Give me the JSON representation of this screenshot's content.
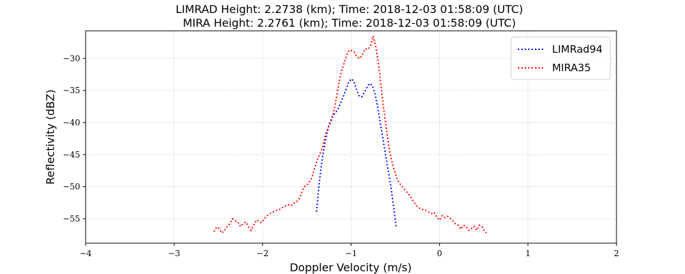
{
  "chart_data": {
    "type": "line",
    "title_lines": [
      "LIMRAD Height: 2.2738 (km); Time: 2018-12-03 01:58:09 (UTC)",
      "MIRA Height: 2.2761 (km); Time: 2018-12-03 01:58:09 (UTC)"
    ],
    "xlabel": "Doppler Velocity (m/s)",
    "ylabel": "Reflectivity (dBZ)",
    "xlim": [
      -4,
      2
    ],
    "ylim": [
      -58.8,
      -25.7
    ],
    "x_ticks": [
      -4,
      -3,
      -2,
      -1,
      0,
      1,
      2
    ],
    "x_tick_labels": [
      "−4",
      "−3",
      "−2",
      "−1",
      "0",
      "1",
      "2"
    ],
    "y_ticks": [
      -55,
      -50,
      -45,
      -40,
      -35,
      -30
    ],
    "y_tick_labels": [
      "−55",
      "−50",
      "−45",
      "−40",
      "−35",
      "−30"
    ],
    "grid": true,
    "legend_position": "top-right",
    "series": [
      {
        "name": "LIMRad94",
        "color": "#0000ff",
        "style": "dotted",
        "points": [
          [
            -1.39,
            -53.9
          ],
          [
            -1.36,
            -49.5
          ],
          [
            -1.33,
            -46.0
          ],
          [
            -1.3,
            -43.5
          ],
          [
            -1.27,
            -41.5
          ],
          [
            -1.24,
            -40.0
          ],
          [
            -1.21,
            -39.0
          ],
          [
            -1.18,
            -38.5
          ],
          [
            -1.15,
            -38.0
          ],
          [
            -1.12,
            -37.0
          ],
          [
            -1.09,
            -36.0
          ],
          [
            -1.06,
            -35.0
          ],
          [
            -1.03,
            -33.8
          ],
          [
            -1.0,
            -33.2
          ],
          [
            -0.97,
            -33.5
          ],
          [
            -0.94,
            -34.8
          ],
          [
            -0.91,
            -35.8
          ],
          [
            -0.88,
            -36.0
          ],
          [
            -0.85,
            -35.3
          ],
          [
            -0.82,
            -34.5
          ],
          [
            -0.79,
            -33.9
          ],
          [
            -0.76,
            -34.2
          ],
          [
            -0.73,
            -35.5
          ],
          [
            -0.7,
            -37.5
          ],
          [
            -0.67,
            -40.0
          ],
          [
            -0.64,
            -42.5
          ],
          [
            -0.61,
            -45.0
          ],
          [
            -0.58,
            -47.5
          ],
          [
            -0.55,
            -50.0
          ],
          [
            -0.52,
            -53.0
          ],
          [
            -0.49,
            -56.2
          ]
        ]
      },
      {
        "name": "MIRA35",
        "color": "#ff0000",
        "style": "dotted",
        "points": [
          [
            -2.55,
            -57.0
          ],
          [
            -2.52,
            -56.3
          ],
          [
            -2.49,
            -56.5
          ],
          [
            -2.46,
            -57.2
          ],
          [
            -2.43,
            -56.8
          ],
          [
            -2.4,
            -56.2
          ],
          [
            -2.37,
            -55.8
          ],
          [
            -2.34,
            -55.0
          ],
          [
            -2.31,
            -55.3
          ],
          [
            -2.28,
            -55.5
          ],
          [
            -2.25,
            -56.2
          ],
          [
            -2.22,
            -55.8
          ],
          [
            -2.19,
            -55.5
          ],
          [
            -2.16,
            -56.2
          ],
          [
            -2.13,
            -56.8
          ],
          [
            -2.1,
            -56.0
          ],
          [
            -2.07,
            -55.2
          ],
          [
            -2.04,
            -55.4
          ],
          [
            -2.01,
            -55.6
          ],
          [
            -1.98,
            -55.0
          ],
          [
            -1.95,
            -54.5
          ],
          [
            -1.92,
            -54.2
          ],
          [
            -1.89,
            -54.0
          ],
          [
            -1.86,
            -53.8
          ],
          [
            -1.83,
            -53.6
          ],
          [
            -1.8,
            -53.5
          ],
          [
            -1.77,
            -53.2
          ],
          [
            -1.74,
            -53.0
          ],
          [
            -1.71,
            -52.8
          ],
          [
            -1.68,
            -53.0
          ],
          [
            -1.65,
            -52.6
          ],
          [
            -1.62,
            -52.4
          ],
          [
            -1.59,
            -52.0
          ],
          [
            -1.56,
            -51.0
          ],
          [
            -1.53,
            -50.0
          ],
          [
            -1.5,
            -49.8
          ],
          [
            -1.47,
            -49.2
          ],
          [
            -1.44,
            -48.5
          ],
          [
            -1.41,
            -47.0
          ],
          [
            -1.38,
            -45.8
          ],
          [
            -1.35,
            -44.8
          ],
          [
            -1.32,
            -43.8
          ],
          [
            -1.29,
            -42.0
          ],
          [
            -1.26,
            -40.8
          ],
          [
            -1.23,
            -40.0
          ],
          [
            -1.2,
            -38.5
          ],
          [
            -1.17,
            -36.5
          ],
          [
            -1.14,
            -34.0
          ],
          [
            -1.11,
            -32.0
          ],
          [
            -1.08,
            -30.8
          ],
          [
            -1.05,
            -29.5
          ],
          [
            -1.02,
            -28.7
          ],
          [
            -0.99,
            -28.8
          ],
          [
            -0.96,
            -29.1
          ],
          [
            -0.93,
            -29.8
          ],
          [
            -0.9,
            -30.0
          ],
          [
            -0.87,
            -29.3
          ],
          [
            -0.84,
            -28.5
          ],
          [
            -0.81,
            -28.6
          ],
          [
            -0.78,
            -28.0
          ],
          [
            -0.75,
            -26.5
          ],
          [
            -0.72,
            -28.2
          ],
          [
            -0.69,
            -30.8
          ],
          [
            -0.66,
            -34.5
          ],
          [
            -0.63,
            -38.0
          ],
          [
            -0.6,
            -41.0
          ],
          [
            -0.57,
            -44.0
          ],
          [
            -0.54,
            -46.0
          ],
          [
            -0.51,
            -47.5
          ],
          [
            -0.48,
            -48.8
          ],
          [
            -0.45,
            -49.5
          ],
          [
            -0.42,
            -50.0
          ],
          [
            -0.39,
            -50.5
          ],
          [
            -0.36,
            -51.0
          ],
          [
            -0.33,
            -51.5
          ],
          [
            -0.3,
            -52.2
          ],
          [
            -0.27,
            -52.8
          ],
          [
            -0.24,
            -53.2
          ],
          [
            -0.21,
            -53.5
          ],
          [
            -0.18,
            -53.6
          ],
          [
            -0.15,
            -53.7
          ],
          [
            -0.12,
            -54.0
          ],
          [
            -0.09,
            -54.2
          ],
          [
            -0.06,
            -54.0
          ],
          [
            -0.03,
            -54.8
          ],
          [
            0.0,
            -55.2
          ],
          [
            0.03,
            -54.5
          ],
          [
            0.06,
            -54.8
          ],
          [
            0.09,
            -54.6
          ],
          [
            0.12,
            -54.9
          ],
          [
            0.15,
            -55.3
          ],
          [
            0.18,
            -55.8
          ],
          [
            0.21,
            -56.0
          ],
          [
            0.24,
            -56.6
          ],
          [
            0.27,
            -56.0
          ],
          [
            0.3,
            -56.2
          ],
          [
            0.33,
            -56.8
          ],
          [
            0.36,
            -56.5
          ],
          [
            0.39,
            -56.2
          ],
          [
            0.42,
            -56.8
          ],
          [
            0.45,
            -56.0
          ],
          [
            0.48,
            -56.2
          ],
          [
            0.51,
            -57.0
          ],
          [
            0.53,
            -57.2
          ]
        ]
      }
    ]
  }
}
